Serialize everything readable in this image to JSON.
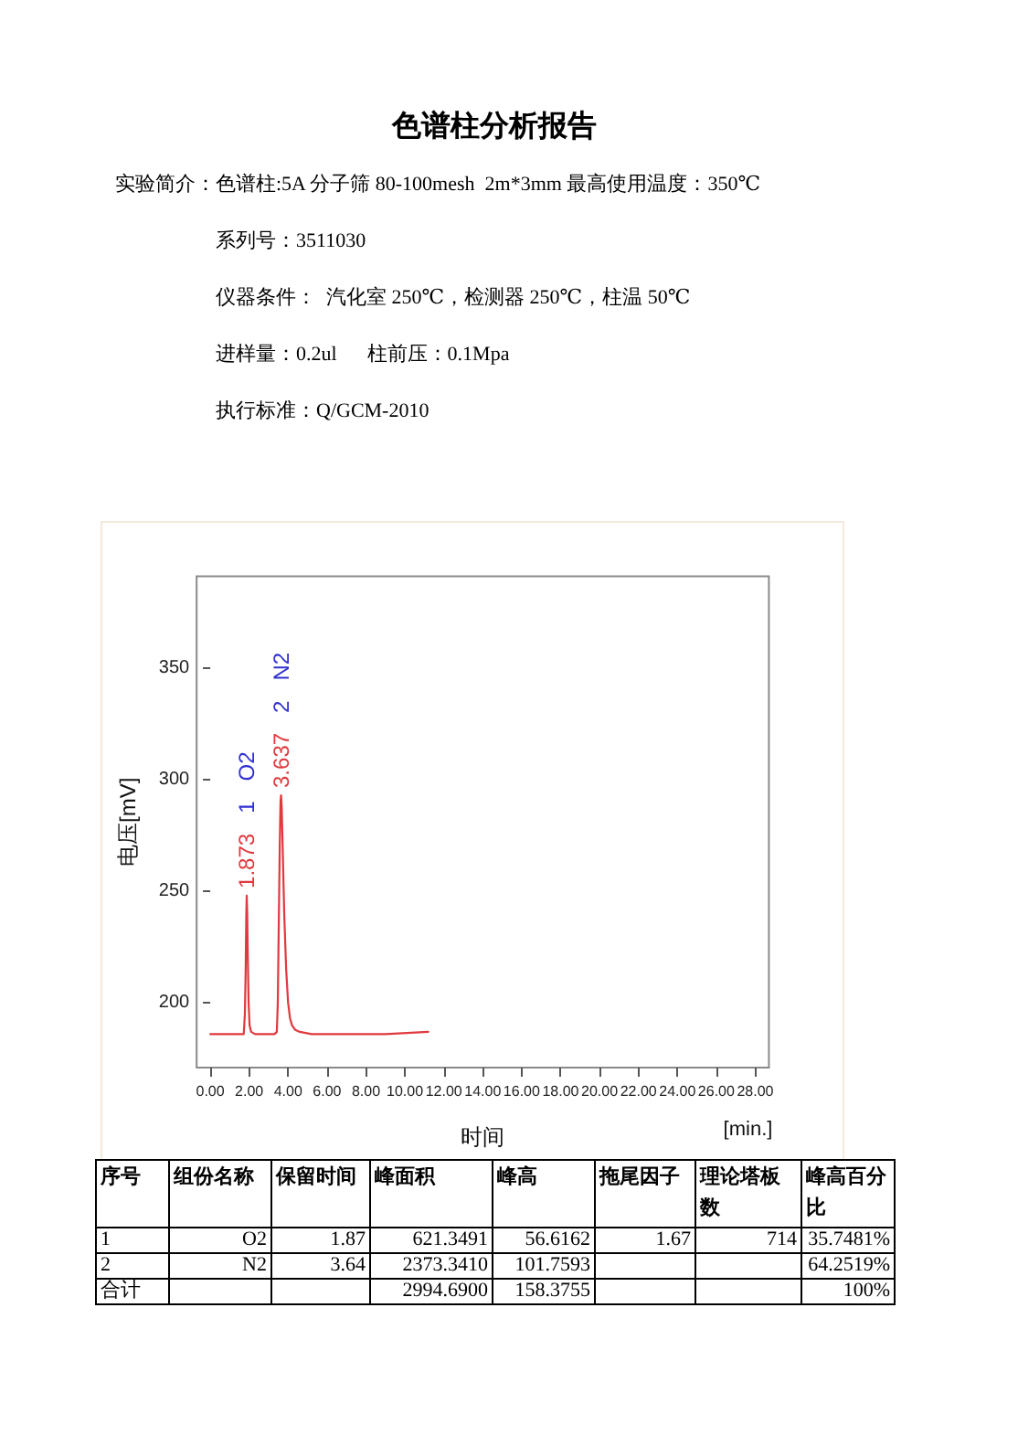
{
  "chart_data": [
    {
      "type": "other",
      "title": "色谱柱分析报告",
      "annotations": [
        "实验简介：色谱柱:5A 分子筛 80-100mesh  2m*3mm 最高使用温度：350℃",
        "系列号：3511030",
        "仪器条件：  汽化室 250℃，检测器 250℃，柱温 50℃",
        "进样量：0.2ul      柱前压：0.1Mpa",
        "执行标准：Q/GCM-2010"
      ]
    },
    {
      "type": "line",
      "xlabel": "时间",
      "ylabel": "电压[mV]",
      "x": [
        0,
        1.0,
        1.6,
        1.72,
        1.78,
        1.82,
        1.85,
        1.873,
        1.9,
        1.93,
        1.97,
        2.02,
        2.1,
        2.3,
        2.8,
        3.3,
        3.42,
        3.47,
        3.52,
        3.57,
        3.61,
        3.637,
        3.67,
        3.72,
        3.8,
        3.9,
        4.0,
        4.1,
        4.2,
        4.35,
        4.6,
        5.2,
        7,
        9,
        11.2
      ],
      "series": [
        {
          "color": "#e0393e",
          "values": [
            186,
            186,
            186,
            186,
            195,
            215,
            238,
            248,
            240,
            220,
            200,
            190,
            187,
            186,
            186,
            186,
            187,
            200,
            235,
            270,
            290,
            293,
            288,
            270,
            240,
            215,
            200,
            193,
            190,
            188,
            187,
            186,
            186,
            186,
            187
          ]
        }
      ],
      "xlim": [
        -0.7,
        28.7
      ],
      "ylim": [
        171,
        391
      ],
      "xticks": [
        {
          "value": 0,
          "label": "0.00"
        },
        {
          "value": 2,
          "label": "2.00"
        },
        {
          "value": 4,
          "label": "4.00"
        },
        {
          "value": 6,
          "label": "6.00"
        },
        {
          "value": 8,
          "label": "8.00"
        },
        {
          "value": 10,
          "label": "10.00"
        },
        {
          "value": 12,
          "label": "12.00"
        },
        {
          "value": 14,
          "label": "14.00"
        },
        {
          "value": 16,
          "label": "16.00"
        },
        {
          "value": 18,
          "label": "18.00"
        },
        {
          "value": 20,
          "label": "20.00"
        },
        {
          "value": 22,
          "label": "22.00"
        },
        {
          "value": 24,
          "label": "24.00"
        },
        {
          "value": 26,
          "label": "26.00"
        },
        {
          "value": 28,
          "label": "28.00"
        }
      ],
      "yticks": [
        200,
        250,
        300,
        350
      ],
      "annotations": [
        "[min.]",
        {
          "text": "1.873",
          "x": 1.873,
          "y": 248
        },
        "1",
        "O2",
        {
          "text": "3.637",
          "x": 3.637,
          "y": 293
        },
        "2",
        "N2"
      ]
    },
    {
      "type": "other",
      "categories": [
        "序号",
        "组份名称",
        "保留时间",
        "峰面积",
        "峰高",
        "拖尾因子",
        "理论塔板数",
        "峰高百分比"
      ],
      "cell_labels": [
        [
          "1",
          "O2",
          "1.87",
          "621.3491",
          "56.6162",
          "1.67",
          "714",
          "35.7481%"
        ],
        [
          "2",
          "N2",
          "3.64",
          "2373.3410",
          "101.7593",
          null,
          null,
          "64.2519%"
        ],
        [
          "合计",
          null,
          null,
          "2994.6900",
          "158.3755",
          null,
          null,
          "100%"
        ]
      ]
    }
  ]
}
